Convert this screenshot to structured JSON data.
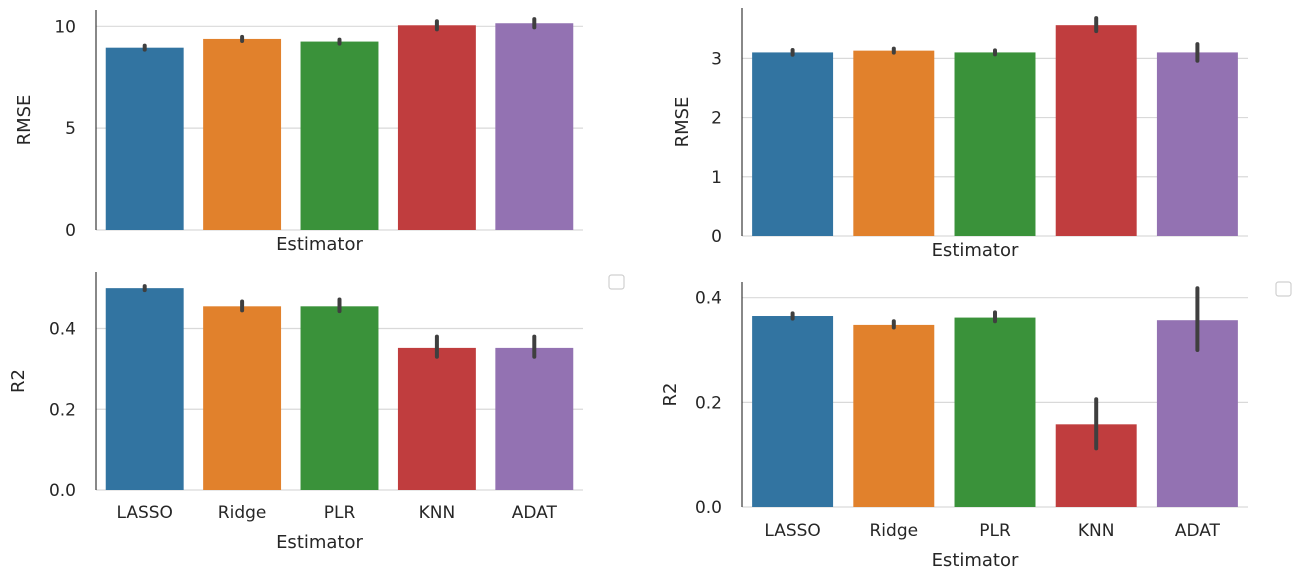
{
  "chart_data": [
    {
      "type": "bar",
      "categories": [
        "LASSO",
        "Ridge",
        "PLR",
        "KNN",
        "ADAT"
      ],
      "values": [
        8.95,
        9.38,
        9.25,
        10.05,
        10.15
      ],
      "errors": [
        [
          8.95,
          8.95
        ],
        [
          9.28,
          9.48
        ],
        [
          9.18,
          9.32
        ],
        [
          9.85,
          10.25
        ],
        [
          9.95,
          10.35
        ]
      ],
      "title": "",
      "xlabel": "Estimator",
      "ylabel": "RMSE",
      "ylim": [
        0,
        10.8
      ],
      "yticks": [
        0,
        5,
        10
      ],
      "ytick_labels": [
        "0",
        "5",
        "10"
      ],
      "show_xtick_labels": false,
      "grid": "horizontal"
    },
    {
      "type": "bar",
      "categories": [
        "LASSO",
        "Ridge",
        "PLR",
        "KNN",
        "ADAT"
      ],
      "values": [
        3.1,
        3.13,
        3.1,
        3.56,
        3.1
      ],
      "errors": [
        [
          3.06,
          3.14
        ],
        [
          3.13,
          3.13
        ],
        [
          3.1,
          3.1
        ],
        [
          3.46,
          3.68
        ],
        [
          2.96,
          3.24
        ]
      ],
      "title": "",
      "xlabel": "Estimator",
      "ylabel": "RMSE",
      "ylim": [
        0,
        3.85
      ],
      "yticks": [
        0,
        1,
        2,
        3
      ],
      "ytick_labels": [
        "0",
        "1",
        "2",
        "3"
      ],
      "show_xtick_labels": false,
      "grid": "horizontal"
    },
    {
      "type": "bar",
      "categories": [
        "LASSO",
        "Ridge",
        "PLR",
        "KNN",
        "ADAT"
      ],
      "values": [
        0.5,
        0.455,
        0.455,
        0.352,
        0.352
      ],
      "errors": [
        [
          0.495,
          0.505
        ],
        [
          0.445,
          0.467
        ],
        [
          0.443,
          0.472
        ],
        [
          0.33,
          0.38
        ],
        [
          0.33,
          0.38
        ]
      ],
      "title": "",
      "xlabel": "Estimator",
      "ylabel": "R2",
      "ylim": [
        0,
        0.54
      ],
      "yticks": [
        0.0,
        0.2,
        0.4
      ],
      "ytick_labels": [
        "0.0",
        "0.2",
        "0.4"
      ],
      "show_xtick_labels": true,
      "grid": "horizontal",
      "legend": "empty box, top-right outside"
    },
    {
      "type": "bar",
      "categories": [
        "LASSO",
        "Ridge",
        "PLR",
        "KNN",
        "ADAT"
      ],
      "values": [
        0.365,
        0.348,
        0.362,
        0.158,
        0.357
      ],
      "errors": [
        [
          0.36,
          0.37
        ],
        [
          0.343,
          0.355
        ],
        [
          0.355,
          0.372
        ],
        [
          0.112,
          0.206
        ],
        [
          0.3,
          0.418
        ]
      ],
      "title": "",
      "xlabel": "Estimator",
      "ylabel": "R2",
      "ylim": [
        0,
        0.43
      ],
      "yticks": [
        0.0,
        0.2,
        0.4
      ],
      "ytick_labels": [
        "0.0",
        "0.2",
        "0.4"
      ],
      "show_xtick_labels": true,
      "grid": "horizontal",
      "legend": "empty box, top-right outside"
    }
  ],
  "colors": {
    "bars": [
      "#3274a1",
      "#e1812c",
      "#3a923a",
      "#c03d3e",
      "#9372b2"
    ],
    "errorbar": "#3f3f3f",
    "grid": "#d9d9d9",
    "spine": "#262626"
  }
}
